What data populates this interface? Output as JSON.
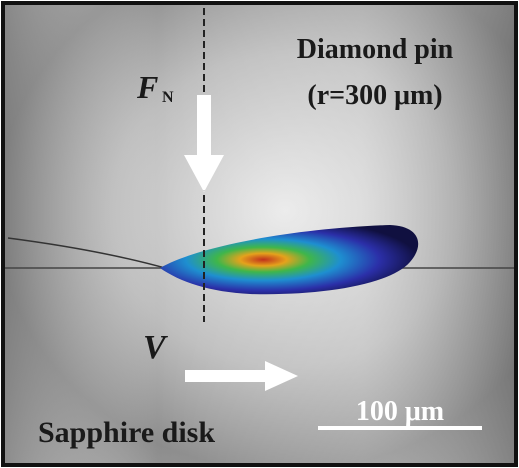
{
  "figure": {
    "force_label": {
      "symbol": "F",
      "subscript": "N"
    },
    "pin_label": {
      "line1": "Diamond pin",
      "line2": "(r=300 μm)"
    },
    "velocity_label": "V",
    "disk_label": "Sapphire disk",
    "scale_bar_label": "100 μm"
  }
}
